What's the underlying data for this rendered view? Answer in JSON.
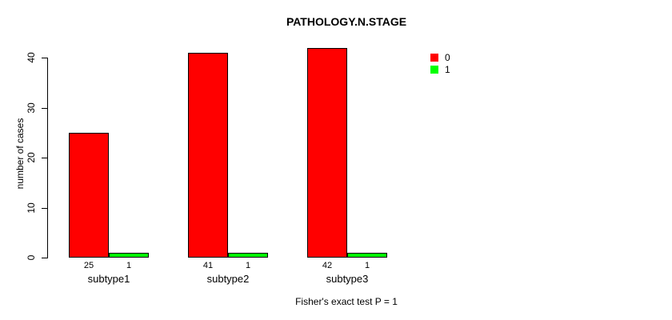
{
  "chart_data": {
    "type": "bar",
    "title": "PATHOLOGY.N.STAGE",
    "ylabel": "number of cases",
    "xlabel": "",
    "annotation": "Fisher's exact test P = 1",
    "categories": [
      "subtype1",
      "subtype2",
      "subtype3"
    ],
    "series": [
      {
        "name": "0",
        "color": "#ff0000",
        "values": [
          25,
          41,
          42
        ]
      },
      {
        "name": "1",
        "color": "#00ff00",
        "values": [
          1,
          1,
          1
        ]
      }
    ],
    "bar_value_labels": [
      [
        "25",
        "41",
        "42"
      ],
      [
        "1",
        "1",
        "1"
      ]
    ],
    "ylim": [
      0,
      40
    ],
    "yticks": [
      0,
      10,
      20,
      30,
      40
    ],
    "grid": false,
    "legend_position": "top-right",
    "bar_border_color": "#000000",
    "axis_color": "#000000",
    "background_color": "#ffffff"
  }
}
